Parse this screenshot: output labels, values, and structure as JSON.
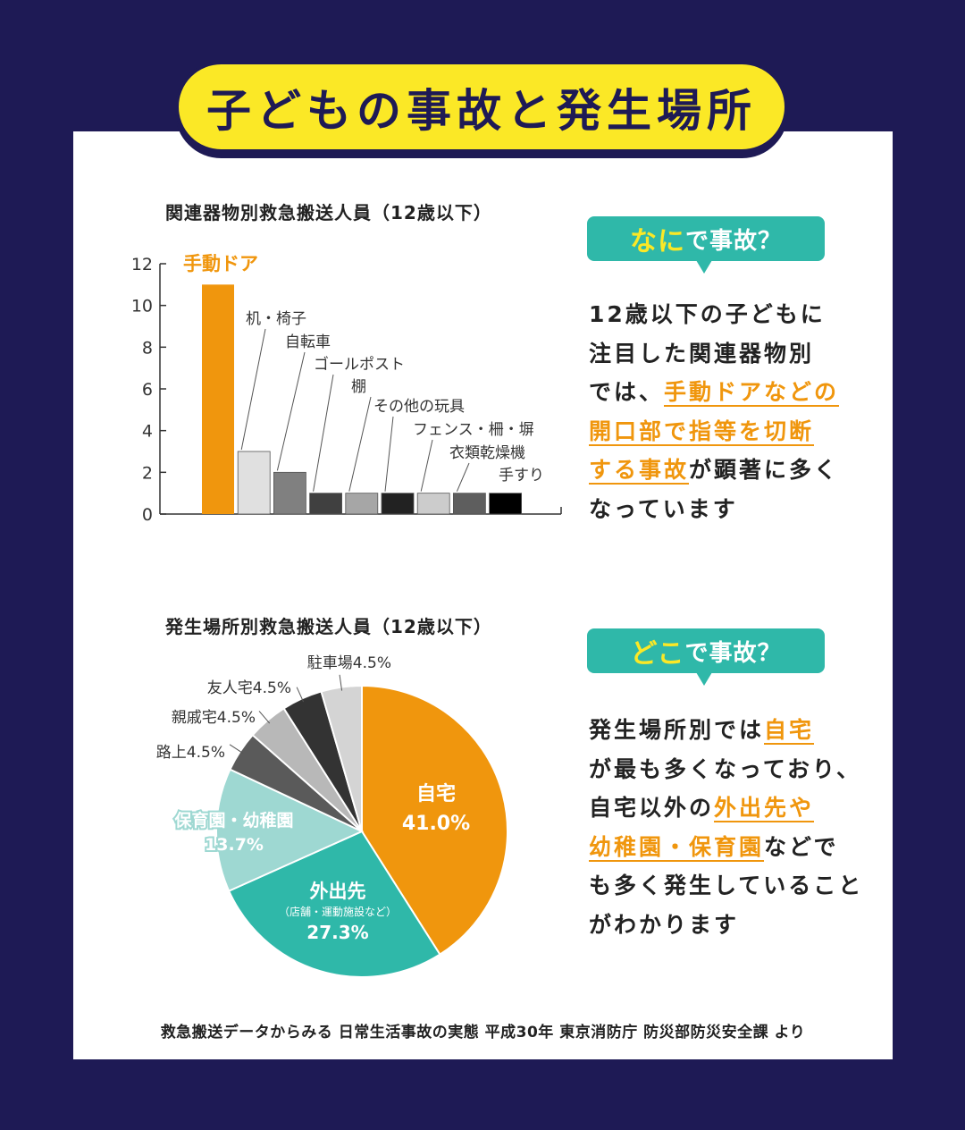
{
  "page_title": "子どもの事故と発生場所",
  "bar_section": {
    "title": "関連器物別救急搬送人員（12歳以下）",
    "bubble_highlight": "なに",
    "bubble_rest": "で事故？",
    "desc_lines": [
      [
        {
          "t": "12歳以下の子どもに"
        }
      ],
      [
        {
          "t": "注目した関連器物別"
        }
      ],
      [
        {
          "t": "では、"
        },
        {
          "t": "手動ドアなどの",
          "o": true
        }
      ],
      [
        {
          "t": "開口部で指等を切断",
          "o": true
        }
      ],
      [
        {
          "t": "する事故",
          "o": true
        },
        {
          "t": "が顕著に多く"
        }
      ],
      [
        {
          "t": "なっています"
        }
      ]
    ]
  },
  "pie_section": {
    "title": "発生場所別救急搬送人員（12歳以下）",
    "bubble_highlight": "どこ",
    "bubble_rest": "で事故？",
    "desc_lines": [
      [
        {
          "t": "発生場所別では"
        },
        {
          "t": "自宅",
          "o": true
        }
      ],
      [
        {
          "t": "が最も多くなっており、"
        }
      ],
      [
        {
          "t": "自宅以外の"
        },
        {
          "t": "外出先や",
          "o": true
        }
      ],
      [
        {
          "t": "幼稚園・保育園",
          "o": true
        },
        {
          "t": "などで"
        }
      ],
      [
        {
          "t": "も多く発生していること"
        }
      ],
      [
        {
          "t": "がわかります"
        }
      ]
    ]
  },
  "footer": "救急搬送データからみる 日常生活事故の実態 平成30年 東京消防庁 防災部防災安全課 より",
  "chart_data": [
    {
      "type": "bar",
      "categories": [
        "手動ドア",
        "机・椅子",
        "自転車",
        "ゴールポスト",
        "棚",
        "その他の玩具",
        "フェンス・柵・塀",
        "衣類乾燥機",
        "手すり"
      ],
      "values": [
        11,
        3,
        2,
        1,
        1,
        1,
        1,
        1,
        1
      ],
      "colors": [
        "#f0960d",
        "#e0e0e0",
        "#808080",
        "#404040",
        "#a6a6a6",
        "#222222",
        "#cccccc",
        "#5e5e5e",
        "#000000"
      ],
      "ylim": [
        0,
        12
      ],
      "yticks": [
        0,
        2,
        4,
        6,
        8,
        10,
        12
      ],
      "highlight_color": "#f0960d"
    },
    {
      "type": "pie",
      "slices": [
        {
          "label": "自宅",
          "value": 41.0,
          "display": "41.0%",
          "color": "#f0960d"
        },
        {
          "label": "外出先",
          "sublabel": "（店舗・運動施設など）",
          "value": 27.3,
          "display": "27.3%",
          "color": "#2fb8a9"
        },
        {
          "label": "保育園・幼稚園",
          "value": 13.7,
          "display": "13.7%",
          "color": "#9ed8d2"
        },
        {
          "label": "路上",
          "value": 4.5,
          "display": "4.5%",
          "color": "#5a5a5a"
        },
        {
          "label": "親戚宅",
          "value": 4.5,
          "display": "4.5%",
          "color": "#b8b8b8"
        },
        {
          "label": "友人宅",
          "value": 4.5,
          "display": "4.5%",
          "color": "#333333"
        },
        {
          "label": "駐車場",
          "value": 4.5,
          "display": "4.5%",
          "color": "#d4d4d4"
        }
      ]
    }
  ]
}
